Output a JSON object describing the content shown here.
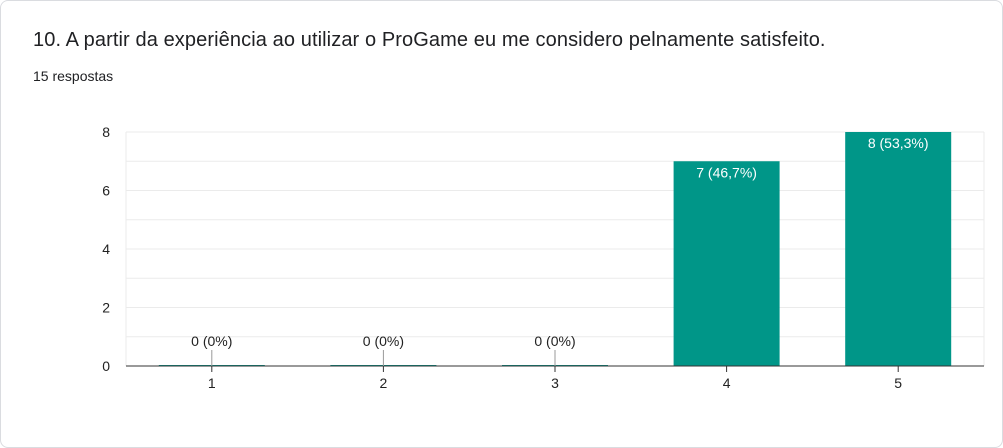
{
  "question": {
    "title": "10. A partir da experiência ao utilizar o ProGame eu me considero pelnamente satisfeito.",
    "responses": "15 respostas"
  },
  "colors": {
    "bar": "#009688",
    "grid": "#ebebeb",
    "axis": "#333333",
    "text": "#222222",
    "label_inside": "#ffffff"
  },
  "chart_data": {
    "type": "bar",
    "categories": [
      "1",
      "2",
      "3",
      "4",
      "5"
    ],
    "values": [
      0,
      0,
      0,
      7,
      8
    ],
    "data_labels": [
      "0 (0%)",
      "0 (0%)",
      "0 (0%)",
      "7 (46,7%)",
      "8 (53,3%)"
    ],
    "y_ticks": [
      0,
      2,
      4,
      6,
      8
    ],
    "ylim": [
      0,
      8
    ],
    "grid": true,
    "legend": "none",
    "title": "",
    "xlabel": "",
    "ylabel": ""
  }
}
